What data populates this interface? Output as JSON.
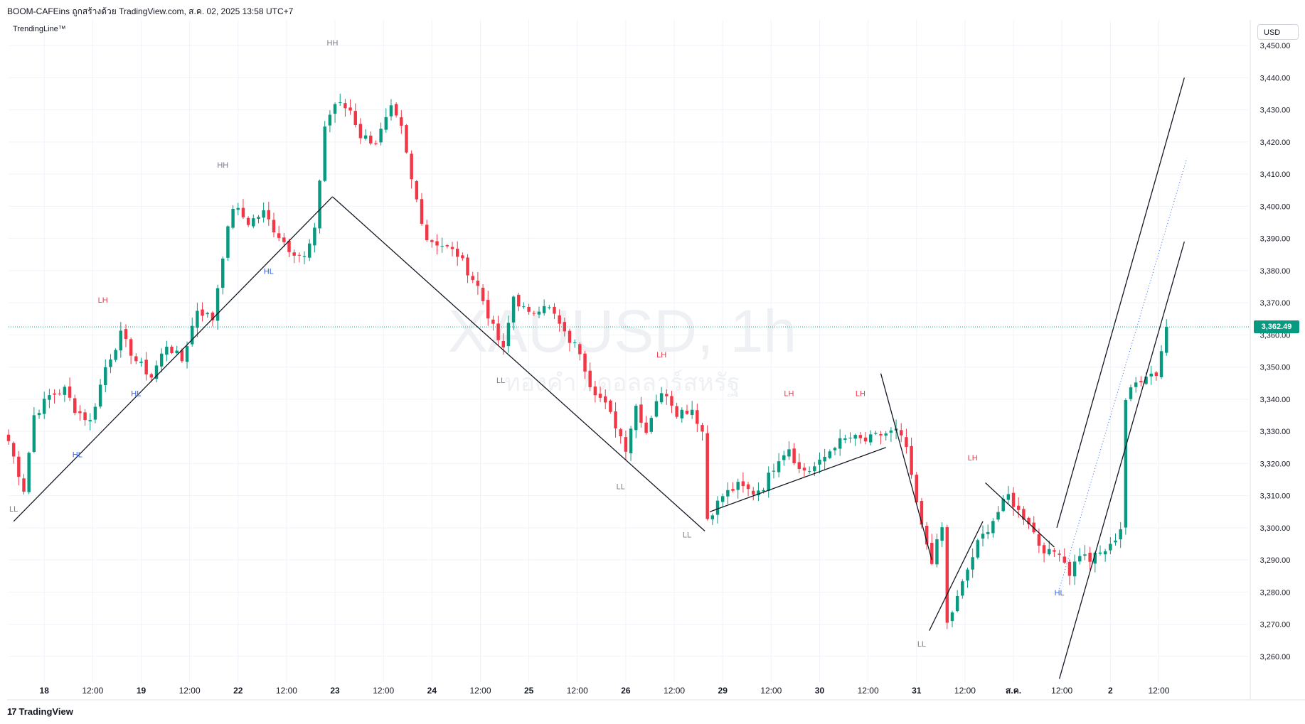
{
  "header": {
    "title": "BOOM-CAFEins ถูกสร้างด้วย TradingView.com, ส.ค. 02, 2025 13:58 UTC+7",
    "indicator": "TrendingLine™"
  },
  "currency_button": "USD",
  "footer_logo": "TradingView",
  "watermark": {
    "symbol": "XAUUSD, 1h",
    "subtitle": "ทองคำ / ดอลลาร์สหรัฐ"
  },
  "last_price_label": "3,362.49",
  "colors": {
    "up": "#089981",
    "down": "#f23645",
    "grid": "#f0f3fa",
    "text": "#131722"
  },
  "chart_data": {
    "type": "candlestick",
    "ylim": [
      3252,
      3458
    ],
    "xlim": [
      0,
      243
    ],
    "y_ticks": [
      {
        "v": 3450,
        "label": "3,450.00"
      },
      {
        "v": 3440,
        "label": "3,440.00"
      },
      {
        "v": 3430,
        "label": "3,430.00"
      },
      {
        "v": 3420,
        "label": "3,420.00"
      },
      {
        "v": 3410,
        "label": "3,410.00"
      },
      {
        "v": 3400,
        "label": "3,400.00"
      },
      {
        "v": 3390,
        "label": "3,390.00"
      },
      {
        "v": 3380,
        "label": "3,380.00"
      },
      {
        "v": 3370,
        "label": "3,370.00"
      },
      {
        "v": 3360,
        "label": "3,360.00"
      },
      {
        "v": 3350,
        "label": "3,350.00"
      },
      {
        "v": 3340,
        "label": "3,340.00"
      },
      {
        "v": 3330,
        "label": "3,330.00"
      },
      {
        "v": 3320,
        "label": "3,320.00"
      },
      {
        "v": 3310,
        "label": "3,310.00"
      },
      {
        "v": 3300,
        "label": "3,300.00"
      },
      {
        "v": 3290,
        "label": "3,290.00"
      },
      {
        "v": 3280,
        "label": "3,280.00"
      },
      {
        "v": 3270,
        "label": "3,270.00"
      },
      {
        "v": 3260,
        "label": "3,260.00"
      }
    ],
    "x_ticks": [
      {
        "i": 7,
        "label": "18"
      },
      {
        "i": 16.5,
        "label": "12:00"
      },
      {
        "i": 26,
        "label": "19"
      },
      {
        "i": 35.5,
        "label": "12:00"
      },
      {
        "i": 45,
        "label": "22"
      },
      {
        "i": 54.5,
        "label": "12:00"
      },
      {
        "i": 64,
        "label": "23"
      },
      {
        "i": 73.5,
        "label": "12:00"
      },
      {
        "i": 83,
        "label": "24"
      },
      {
        "i": 92.5,
        "label": "12:00"
      },
      {
        "i": 102,
        "label": "25"
      },
      {
        "i": 111.5,
        "label": "12:00"
      },
      {
        "i": 121,
        "label": "26"
      },
      {
        "i": 130.5,
        "label": "12:00"
      },
      {
        "i": 140,
        "label": "29"
      },
      {
        "i": 149.5,
        "label": "12:00"
      },
      {
        "i": 159,
        "label": "30"
      },
      {
        "i": 168.5,
        "label": "12:00"
      },
      {
        "i": 178,
        "label": "31"
      },
      {
        "i": 187.5,
        "label": "12:00"
      },
      {
        "i": 197,
        "label": "ส.ค."
      },
      {
        "i": 206.5,
        "label": "12:00"
      },
      {
        "i": 216,
        "label": "2"
      },
      {
        "i": 225.5,
        "label": "12:00"
      }
    ],
    "last_price": 3362.49,
    "anchors": [
      [
        0,
        3327
      ],
      [
        3,
        3312
      ],
      [
        5,
        3335
      ],
      [
        8,
        3341
      ],
      [
        11,
        3343
      ],
      [
        13,
        3337
      ],
      [
        16,
        3333
      ],
      [
        19,
        3350
      ],
      [
        22,
        3360
      ],
      [
        25,
        3352
      ],
      [
        28,
        3347
      ],
      [
        31,
        3357
      ],
      [
        34,
        3352
      ],
      [
        37,
        3368
      ],
      [
        40,
        3365
      ],
      [
        42,
        3385
      ],
      [
        44,
        3400
      ],
      [
        47,
        3395
      ],
      [
        50,
        3398
      ],
      [
        52,
        3393
      ],
      [
        55,
        3387
      ],
      [
        58,
        3384
      ],
      [
        60,
        3392
      ],
      [
        62,
        3425
      ],
      [
        64,
        3432
      ],
      [
        67,
        3430
      ],
      [
        69,
        3422
      ],
      [
        72,
        3420
      ],
      [
        75,
        3430
      ],
      [
        77,
        3424
      ],
      [
        79,
        3408
      ],
      [
        82,
        3390
      ],
      [
        85,
        3388
      ],
      [
        88,
        3385
      ],
      [
        90,
        3380
      ],
      [
        92,
        3375
      ],
      [
        95,
        3362
      ],
      [
        97,
        3355
      ],
      [
        99,
        3372
      ],
      [
        102,
        3366
      ],
      [
        105,
        3370
      ],
      [
        107,
        3366
      ],
      [
        109,
        3360
      ],
      [
        112,
        3355
      ],
      [
        114,
        3345
      ],
      [
        117,
        3338
      ],
      [
        119,
        3332
      ],
      [
        121,
        3325
      ],
      [
        123,
        3338
      ],
      [
        125,
        3330
      ],
      [
        127,
        3340
      ],
      [
        129,
        3342
      ],
      [
        131,
        3336
      ],
      [
        134,
        3337
      ],
      [
        136,
        3330
      ],
      [
        137,
        3303
      ],
      [
        140,
        3310
      ],
      [
        143,
        3313
      ],
      [
        146,
        3311
      ],
      [
        148,
        3313
      ],
      [
        151,
        3322
      ],
      [
        153,
        3325
      ],
      [
        155,
        3318
      ],
      [
        157,
        3318
      ],
      [
        159,
        3320
      ],
      [
        162,
        3326
      ],
      [
        165,
        3328
      ],
      [
        168,
        3327
      ],
      [
        171,
        3329
      ],
      [
        174,
        3330
      ],
      [
        176,
        3325
      ],
      [
        177,
        3315
      ],
      [
        179,
        3300
      ],
      [
        181,
        3290
      ],
      [
        183,
        3300
      ],
      [
        184,
        3270
      ],
      [
        186,
        3278
      ],
      [
        188,
        3287
      ],
      [
        190,
        3295
      ],
      [
        192,
        3300
      ],
      [
        194,
        3305
      ],
      [
        196,
        3310
      ],
      [
        198,
        3305
      ],
      [
        200,
        3302
      ],
      [
        202,
        3295
      ],
      [
        204,
        3292
      ],
      [
        206,
        3293
      ],
      [
        208,
        3286
      ],
      [
        210,
        3292
      ],
      [
        212,
        3290
      ],
      [
        214,
        3292
      ],
      [
        216,
        3294
      ],
      [
        218,
        3300
      ],
      [
        219,
        3340
      ],
      [
        221,
        3345
      ],
      [
        223,
        3348
      ],
      [
        225,
        3348
      ],
      [
        227,
        3362.49
      ]
    ],
    "labels": [
      {
        "text": "LL",
        "i": 1,
        "v": 3305,
        "color": "#787b86"
      },
      {
        "text": "HL",
        "i": 13.5,
        "v": 3322,
        "color": "#2962ff"
      },
      {
        "text": "LH",
        "i": 18.5,
        "v": 3370,
        "color": "#f23645"
      },
      {
        "text": "HL",
        "i": 25,
        "v": 3341,
        "color": "#2962ff"
      },
      {
        "text": "HH",
        "i": 42,
        "v": 3412,
        "color": "#787b86"
      },
      {
        "text": "HL",
        "i": 51,
        "v": 3379,
        "color": "#2962ff"
      },
      {
        "text": "HH",
        "i": 63.5,
        "v": 3450,
        "color": "#787b86"
      },
      {
        "text": "LL",
        "i": 96.5,
        "v": 3345,
        "color": "#787b86"
      },
      {
        "text": "LH",
        "i": 128,
        "v": 3353,
        "color": "#f23645"
      },
      {
        "text": "LL",
        "i": 120,
        "v": 3312,
        "color": "#787b86"
      },
      {
        "text": "LL",
        "i": 133,
        "v": 3297,
        "color": "#787b86"
      },
      {
        "text": "LH",
        "i": 153,
        "v": 3341,
        "color": "#f23645"
      },
      {
        "text": "LH",
        "i": 167,
        "v": 3341,
        "color": "#f23645"
      },
      {
        "text": "LL",
        "i": 179,
        "v": 3263,
        "color": "#787b86"
      },
      {
        "text": "LH",
        "i": 189,
        "v": 3321,
        "color": "#f23645"
      },
      {
        "text": "HL",
        "i": 206,
        "v": 3279,
        "color": "#2962ff"
      }
    ],
    "lines": [
      {
        "from": [
          1,
          3302
        ],
        "to": [
          63.5,
          3403
        ],
        "style": "solid"
      },
      {
        "from": [
          63.5,
          3403
        ],
        "to": [
          136.5,
          3299
        ],
        "style": "solid"
      },
      {
        "from": [
          137.5,
          3305
        ],
        "to": [
          172,
          3325
        ],
        "style": "solid"
      },
      {
        "from": [
          171,
          3348
        ],
        "to": [
          181,
          3290
        ],
        "style": "solid"
      },
      {
        "from": [
          180.5,
          3268
        ],
        "to": [
          191,
          3302
        ],
        "style": "solid"
      },
      {
        "from": [
          191.5,
          3314
        ],
        "to": [
          205,
          3294
        ],
        "style": "solid"
      },
      {
        "from": [
          205.5,
          3300
        ],
        "to": [
          230.5,
          3440
        ],
        "style": "solid"
      },
      {
        "from": [
          206,
          3253
        ],
        "to": [
          230.5,
          3389
        ],
        "style": "solid"
      },
      {
        "from": [
          206,
          3281
        ],
        "to": [
          231,
          3415
        ],
        "style": "dotted"
      }
    ]
  }
}
